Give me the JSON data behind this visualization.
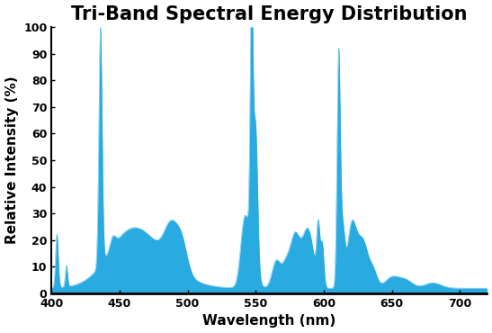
{
  "title": "Tri-Band Spectral Energy Distribution",
  "xlabel": "Wavelength (nm)",
  "ylabel": "Relative Intensity (%)",
  "xlim": [
    400,
    720
  ],
  "ylim": [
    0,
    100
  ],
  "xticks": [
    400,
    450,
    500,
    550,
    600,
    650,
    700
  ],
  "yticks": [
    0,
    10,
    20,
    30,
    40,
    50,
    60,
    70,
    80,
    90,
    100
  ],
  "fill_color": "#29ABE2",
  "line_color": "#29ABE2",
  "background_color": "#ffffff",
  "title_fontsize": 15,
  "title_fontweight": "bold",
  "label_fontsize": 11
}
